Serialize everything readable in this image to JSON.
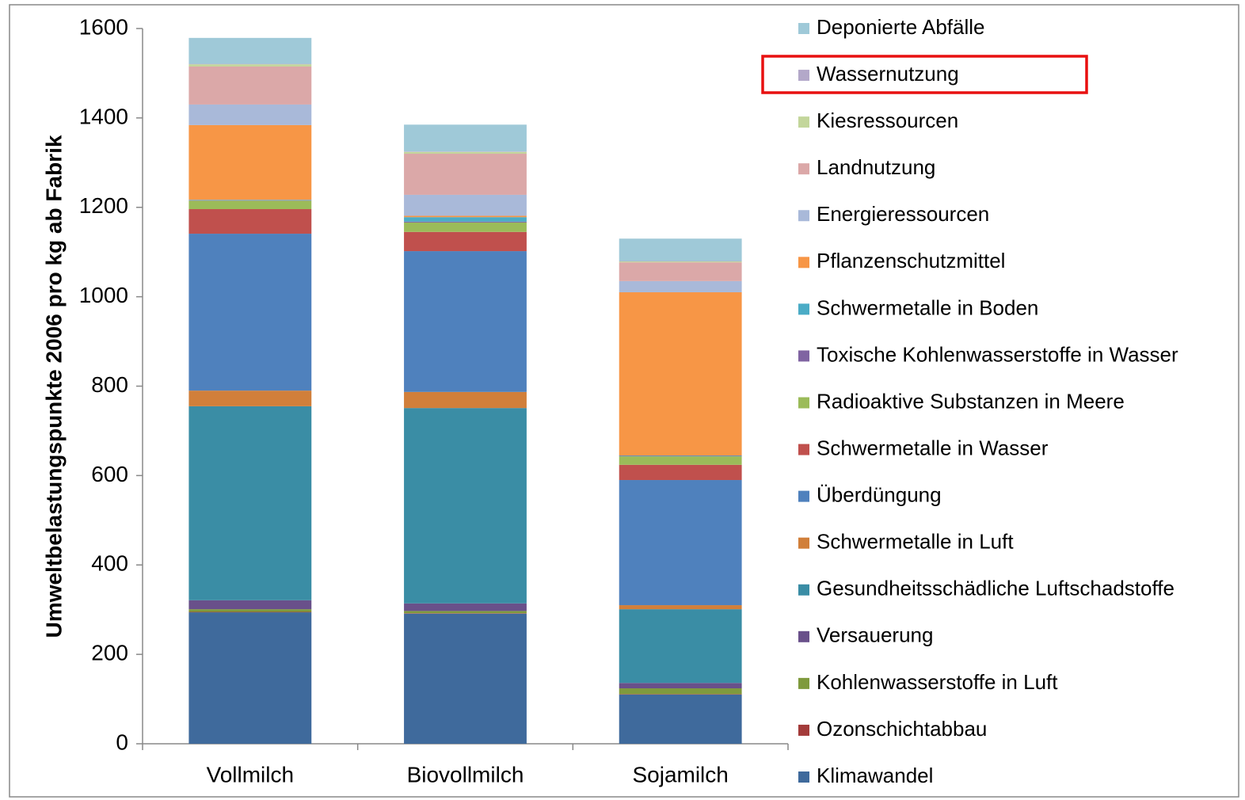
{
  "chart_data": {
    "type": "stacked_bar",
    "ylabel": "Umweltbelastungspunkte  2006 pro kg ab Fabrik",
    "categories": [
      "Vollmilch",
      "Biovollmilch",
      "Sojamilch"
    ],
    "ylim": [
      0,
      1600
    ],
    "yticks": [
      0,
      200,
      400,
      600,
      800,
      1000,
      1200,
      1400,
      1600
    ],
    "grid": false,
    "legend": "right",
    "series": [
      {
        "name": "Klimawandel",
        "color": "#3f6a9c",
        "values": [
          294,
          291,
          110
        ]
      },
      {
        "name": "Ozonschichtabbau",
        "color": "#a33b3a",
        "values": [
          1,
          1,
          1
        ]
      },
      {
        "name": "Kohlenwasserstoffe in Luft",
        "color": "#7f9a3d",
        "values": [
          6,
          5,
          13
        ]
      },
      {
        "name": "Versauerung",
        "color": "#69508a",
        "values": [
          20,
          17,
          12
        ]
      },
      {
        "name": "Gesundheitsschädliche Luftschadstoffe",
        "color": "#3a8da5",
        "values": [
          434,
          437,
          165
        ]
      },
      {
        "name": "Schwermetalle in Luft",
        "color": "#d17f3a",
        "values": [
          35,
          36,
          9
        ]
      },
      {
        "name": "Überdüngung",
        "color": "#4f81bd",
        "values": [
          351,
          315,
          280
        ]
      },
      {
        "name": "Schwermetalle in Wasser",
        "color": "#c0504d",
        "values": [
          55,
          43,
          34
        ]
      },
      {
        "name": "Radioaktive Substanzen in Meere",
        "color": "#9bbb59",
        "values": [
          19,
          21,
          19
        ]
      },
      {
        "name": "Toxische Kohlenwasserstoffe in Wasser",
        "color": "#8064a2",
        "values": [
          1,
          2,
          1
        ]
      },
      {
        "name": "Schwermetalle in Boden",
        "color": "#4bacc6",
        "values": [
          1,
          10,
          1
        ]
      },
      {
        "name": "Pflanzenschutzmittel",
        "color": "#f79646",
        "values": [
          167,
          3,
          365
        ]
      },
      {
        "name": "Energieressourcen",
        "color": "#a9b9d9",
        "values": [
          46,
          47,
          25
        ]
      },
      {
        "name": "Landnutzung",
        "color": "#dba8a8",
        "values": [
          85,
          92,
          42
        ]
      },
      {
        "name": "Kiesressourcen",
        "color": "#c3d69b",
        "values": [
          5,
          4,
          2
        ]
      },
      {
        "name": "Wassernutzung",
        "color": "#b3a8c9",
        "values": [
          1,
          1,
          1
        ]
      },
      {
        "name": "Deponierte Abfälle",
        "color": "#9fc9d8",
        "values": [
          58,
          60,
          50
        ]
      }
    ]
  }
}
